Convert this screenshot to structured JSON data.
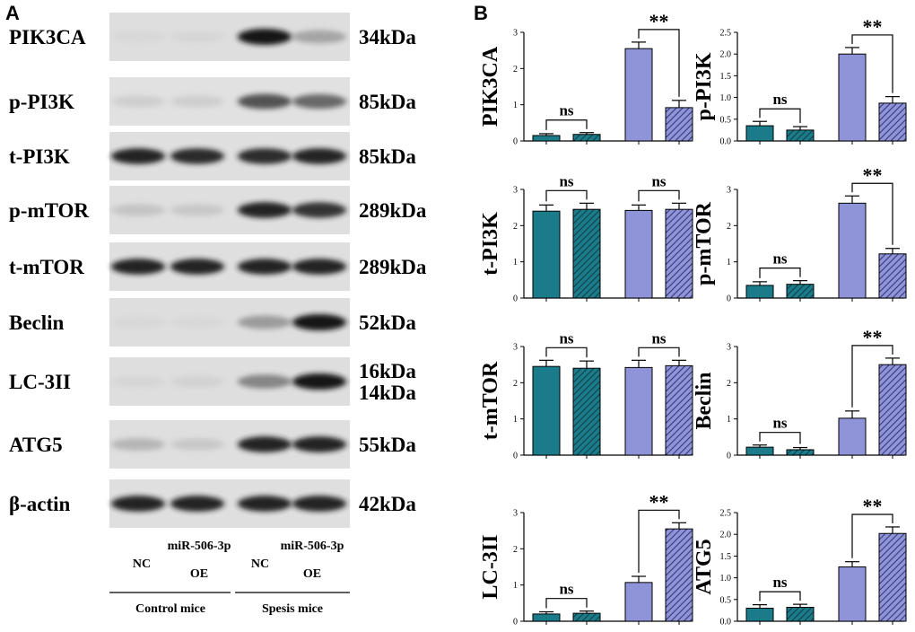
{
  "panel_a_label": "A",
  "panel_b_label": "B",
  "blot": {
    "proteins": [
      {
        "name": "PIK3CA",
        "sizes": [
          "34kDa"
        ],
        "intensities": [
          0.06,
          0.08,
          1.0,
          0.45
        ]
      },
      {
        "name": "p-PI3K",
        "sizes": [
          "85kDa"
        ],
        "intensities": [
          0.18,
          0.18,
          0.8,
          0.72
        ]
      },
      {
        "name": "t-PI3K",
        "sizes": [
          "85kDa"
        ],
        "intensities": [
          0.95,
          0.93,
          0.92,
          0.94
        ]
      },
      {
        "name": "p-mTOR",
        "sizes": [
          "289kDa"
        ],
        "intensities": [
          0.25,
          0.22,
          0.95,
          0.9
        ]
      },
      {
        "name": "t-mTOR",
        "sizes": [
          "289kDa"
        ],
        "intensities": [
          0.95,
          0.95,
          0.95,
          0.95
        ]
      },
      {
        "name": "Beclin",
        "sizes": [
          "52kDa"
        ],
        "intensities": [
          0.06,
          0.06,
          0.5,
          1.0
        ]
      },
      {
        "name": "LC-3II",
        "sizes": [
          "16kDa",
          "14kDa"
        ],
        "intensities": [
          0.08,
          0.12,
          0.6,
          1.0
        ]
      },
      {
        "name": "ATG5",
        "sizes": [
          "55kDa"
        ],
        "intensities": [
          0.35,
          0.22,
          0.95,
          0.95
        ]
      },
      {
        "name": "β-actin",
        "sizes": [
          "42kDa"
        ],
        "intensities": [
          0.95,
          0.95,
          0.95,
          0.95
        ]
      }
    ],
    "lanes": [
      {
        "line1": "",
        "line2": "NC"
      },
      {
        "line1": "miR-506-3p",
        "line2": "OE"
      },
      {
        "line1": "",
        "line2": "NC"
      },
      {
        "line1": "miR-506-3p",
        "line2": "OE"
      }
    ],
    "groups": [
      "Control mice",
      "Spesis mice"
    ]
  },
  "colors": {
    "teal": "#1a7c8a",
    "lavender": "#8f93d8",
    "hatch_line": "#123a40",
    "hatch_line_lav": "#2f3270"
  },
  "chart_data": [
    {
      "type": "bar",
      "ylabel": "PIK3CA",
      "ylim": [
        0,
        3
      ],
      "yticks": [
        "0",
        "1",
        "2",
        "3"
      ],
      "values": [
        0.15,
        0.18,
        2.55,
        0.92
      ],
      "errors": [
        0.05,
        0.05,
        0.18,
        0.2
      ],
      "hatched": [
        false,
        true,
        false,
        true
      ],
      "annotations": [
        {
          "text": "ns",
          "from": 0,
          "to": 1
        },
        {
          "text": "**",
          "from": 2,
          "to": 3
        }
      ]
    },
    {
      "type": "bar",
      "ylabel": "p-PI3K",
      "ylim": [
        0,
        2.5
      ],
      "yticks": [
        "0.0",
        "0.5",
        "1.0",
        "1.5",
        "2.0",
        "2.5"
      ],
      "values": [
        0.35,
        0.25,
        2.0,
        0.87
      ],
      "errors": [
        0.1,
        0.08,
        0.15,
        0.15
      ],
      "hatched": [
        false,
        true,
        false,
        true
      ],
      "annotations": [
        {
          "text": "ns",
          "from": 0,
          "to": 1
        },
        {
          "text": "**",
          "from": 2,
          "to": 3
        }
      ]
    },
    {
      "type": "bar",
      "ylabel": "t-PI3K",
      "ylim": [
        0,
        3
      ],
      "yticks": [
        "0",
        "1",
        "2",
        "3"
      ],
      "values": [
        2.4,
        2.45,
        2.42,
        2.45
      ],
      "errors": [
        0.17,
        0.17,
        0.15,
        0.17
      ],
      "hatched": [
        false,
        true,
        false,
        true
      ],
      "annotations": [
        {
          "text": "ns",
          "from": 0,
          "to": 1
        },
        {
          "text": "ns",
          "from": 2,
          "to": 3
        }
      ]
    },
    {
      "type": "bar",
      "ylabel": "p-mTOR",
      "ylim": [
        0,
        3
      ],
      "yticks": [
        "0",
        "1",
        "2",
        "3"
      ],
      "values": [
        0.35,
        0.38,
        2.62,
        1.22
      ],
      "errors": [
        0.1,
        0.1,
        0.2,
        0.15
      ],
      "hatched": [
        false,
        true,
        false,
        true
      ],
      "annotations": [
        {
          "text": "ns",
          "from": 0,
          "to": 1
        },
        {
          "text": "**",
          "from": 2,
          "to": 3
        }
      ]
    },
    {
      "type": "bar",
      "ylabel": "t-mTOR",
      "ylim": [
        0,
        3
      ],
      "yticks": [
        "0",
        "1",
        "2",
        "3"
      ],
      "values": [
        2.45,
        2.4,
        2.42,
        2.47
      ],
      "errors": [
        0.17,
        0.2,
        0.2,
        0.15
      ],
      "hatched": [
        false,
        true,
        false,
        true
      ],
      "annotations": [
        {
          "text": "ns",
          "from": 0,
          "to": 1
        },
        {
          "text": "ns",
          "from": 2,
          "to": 3
        }
      ]
    },
    {
      "type": "bar",
      "ylabel": "Beclin",
      "ylim": [
        0,
        3
      ],
      "yticks": [
        "0",
        "1",
        "2",
        "3"
      ],
      "values": [
        0.22,
        0.15,
        1.02,
        2.5
      ],
      "errors": [
        0.06,
        0.06,
        0.2,
        0.18
      ],
      "hatched": [
        false,
        true,
        false,
        true
      ],
      "annotations": [
        {
          "text": "ns",
          "from": 0,
          "to": 1
        },
        {
          "text": "**",
          "from": 2,
          "to": 3
        }
      ]
    },
    {
      "type": "bar",
      "ylabel": "LC-3II",
      "ylim": [
        0,
        3
      ],
      "yticks": [
        "0",
        "1",
        "2",
        "3"
      ],
      "values": [
        0.2,
        0.22,
        1.07,
        2.55
      ],
      "errors": [
        0.06,
        0.06,
        0.17,
        0.17
      ],
      "hatched": [
        false,
        true,
        false,
        true
      ],
      "annotations": [
        {
          "text": "ns",
          "from": 0,
          "to": 1
        },
        {
          "text": "**",
          "from": 2,
          "to": 3
        }
      ]
    },
    {
      "type": "bar",
      "ylabel": "ATG5",
      "ylim": [
        0,
        2.5
      ],
      "yticks": [
        "0.0",
        "0.5",
        "1.0",
        "1.5",
        "2.0",
        "2.5"
      ],
      "values": [
        0.3,
        0.32,
        1.25,
        2.02
      ],
      "errors": [
        0.08,
        0.07,
        0.12,
        0.15
      ],
      "hatched": [
        false,
        true,
        false,
        true
      ],
      "annotations": [
        {
          "text": "ns",
          "from": 0,
          "to": 1
        },
        {
          "text": "**",
          "from": 2,
          "to": 3
        }
      ]
    }
  ]
}
